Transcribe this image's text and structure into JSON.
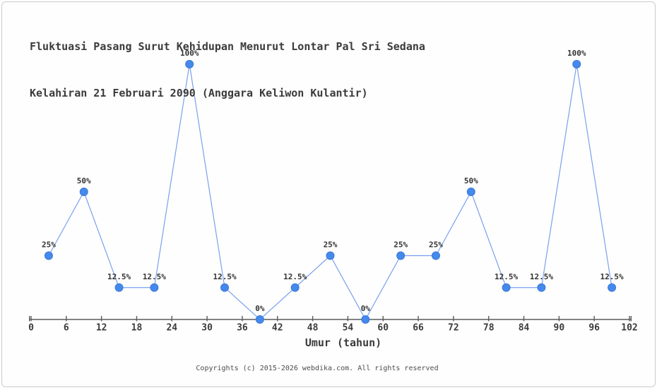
{
  "page": {
    "footer": "Copyrights (c) 2015-2026 webdika.com. All rights reserved"
  },
  "chart_data": {
    "type": "line",
    "title": "Fluktuasi Pasang Surut Kehidupan Menurut Lontar Pal Sri Sedana Kelahiran 21 Februari 2090 (Anggara Keliwon Kulantir)",
    "title_lines": [
      "Fluktuasi Pasang Surut Kehidupan Menurut Lontar Pal Sri Sedana",
      "Kelahiran 21 Februari 2090 (Anggara Keliwon Kulantir)"
    ],
    "xlabel": "Umur (tahun)",
    "ylabel": "",
    "x": [
      3,
      9,
      15,
      21,
      27,
      33,
      39,
      45,
      51,
      57,
      63,
      69,
      75,
      81,
      87,
      93,
      99
    ],
    "values": [
      25,
      50,
      12.5,
      12.5,
      100,
      12.5,
      0,
      12.5,
      25,
      0,
      25,
      25,
      50,
      12.5,
      12.5,
      100,
      12.5
    ],
    "point_labels": [
      "25%",
      "50%",
      "12.5%",
      "12.5%",
      "100%",
      "12.5%",
      "0%",
      "12.5%",
      "25%",
      "0%",
      "25%",
      "25%",
      "50%",
      "12.5%",
      "12.5%",
      "100%",
      "12.5%"
    ],
    "xticks": [
      0,
      6,
      12,
      18,
      24,
      30,
      36,
      42,
      48,
      54,
      60,
      66,
      72,
      78,
      84,
      90,
      96,
      102
    ],
    "xlim": [
      0,
      102
    ],
    "ylim": [
      0,
      100
    ],
    "grid": false,
    "legend": null,
    "colors": {
      "marker": "#4589ec",
      "marker_edge": "#3a79d6",
      "line": "#7aa0ee",
      "axis": "#5a5a5a",
      "title_text": "#3b3b3b",
      "label_text": "#333333",
      "footer_text": "#4d4d4d"
    }
  }
}
